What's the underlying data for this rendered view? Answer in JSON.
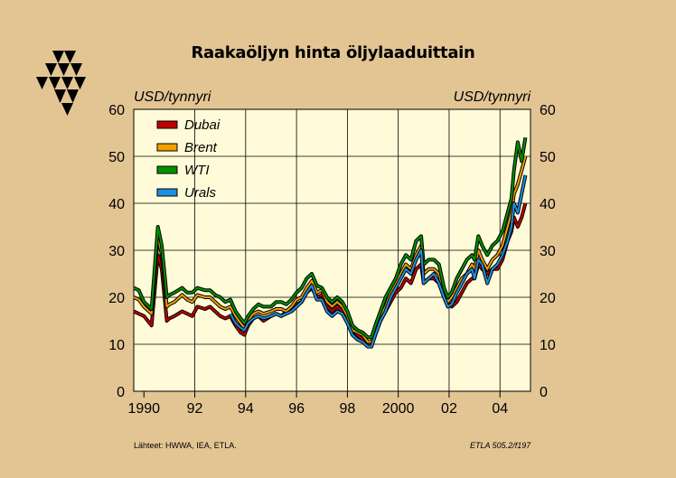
{
  "page": {
    "title": "Raakaöljyn hinta öljylaaduittain"
  },
  "footer": {
    "source": "Lähteet:   HWWA, IEA, ETLA.",
    "code": "ETLA 505.2/f197"
  },
  "chart_data": {
    "type": "line",
    "title": "Raakaöljyn hinta öljylaaduittain",
    "ylabel_left": "USD/tynnyri",
    "ylabel_right": "USD/tynnyri",
    "ylim": [
      0,
      60
    ],
    "yticks": [
      "0",
      "10",
      "20",
      "30",
      "40",
      "50",
      "60"
    ],
    "xlim": [
      1989.6,
      2005.2
    ],
    "xticks": [
      {
        "value": 1990,
        "label": "1990"
      },
      {
        "value": 1992,
        "label": "92"
      },
      {
        "value": 1994,
        "label": "94"
      },
      {
        "value": 1996,
        "label": "96"
      },
      {
        "value": 1998,
        "label": "98"
      },
      {
        "value": 2000,
        "label": "2000"
      },
      {
        "value": 2002,
        "label": "02"
      },
      {
        "value": 2004,
        "label": "04"
      }
    ],
    "grid": true,
    "legend": "top-left",
    "series": [
      {
        "name": "Dubai",
        "color": "#c00000",
        "x": [
          1989.6,
          1989.8,
          1990.0,
          1990.3,
          1990.55,
          1990.7,
          1990.9,
          1991.0,
          1991.2,
          1991.5,
          1991.7,
          1991.9,
          1992.1,
          1992.4,
          1992.6,
          1992.8,
          1993.0,
          1993.2,
          1993.4,
          1993.6,
          1993.8,
          1993.95,
          1994.1,
          1994.3,
          1994.5,
          1994.7,
          1995.0,
          1995.2,
          1995.4,
          1995.6,
          1995.8,
          1996.0,
          1996.2,
          1996.4,
          1996.6,
          1996.8,
          1997.0,
          1997.2,
          1997.4,
          1997.6,
          1997.8,
          1998.0,
          1998.2,
          1998.4,
          1998.6,
          1998.8,
          1998.95,
          1999.1,
          1999.3,
          1999.5,
          1999.7,
          1999.9,
          2000.1,
          2000.3,
          2000.5,
          2000.7,
          2000.9,
          2001.0,
          2001.2,
          2001.4,
          2001.6,
          2001.8,
          2001.95,
          2002.1,
          2002.3,
          2002.5,
          2002.7,
          2002.9,
          2003.0,
          2003.15,
          2003.3,
          2003.5,
          2003.7,
          2003.9,
          2004.1,
          2004.3,
          2004.45,
          2004.55,
          2004.7,
          2004.85,
          2005.0
        ],
        "y": [
          17,
          16.5,
          16,
          14,
          29,
          26,
          15,
          15.5,
          16,
          17,
          16.5,
          16,
          18,
          17.5,
          18,
          17,
          16,
          15.5,
          16,
          14,
          12.5,
          12,
          14,
          15.5,
          16,
          15,
          16,
          16.5,
          16,
          17,
          18,
          18.5,
          19,
          21,
          22,
          20,
          20.5,
          18,
          17,
          18,
          17,
          15,
          13,
          12,
          11,
          10,
          10,
          12,
          15,
          17,
          19,
          21,
          22,
          24,
          23,
          26,
          27,
          23,
          24,
          24,
          23,
          20,
          19,
          18,
          19,
          21,
          23,
          24,
          24,
          27,
          26,
          25,
          26,
          26,
          28,
          32,
          34,
          37,
          35,
          37,
          40
        ]
      },
      {
        "name": "Brent",
        "color": "#f0a000",
        "x": [
          1989.6,
          1989.8,
          1990.0,
          1990.3,
          1990.55,
          1990.7,
          1990.9,
          1991.0,
          1991.2,
          1991.5,
          1991.7,
          1991.9,
          1992.1,
          1992.4,
          1992.6,
          1992.8,
          1993.0,
          1993.2,
          1993.4,
          1993.6,
          1993.8,
          1993.95,
          1994.1,
          1994.3,
          1994.5,
          1994.7,
          1995.0,
          1995.2,
          1995.4,
          1995.6,
          1995.8,
          1996.0,
          1996.2,
          1996.4,
          1996.6,
          1996.8,
          1997.0,
          1997.2,
          1997.4,
          1997.6,
          1997.8,
          1998.0,
          1998.2,
          1998.4,
          1998.6,
          1998.8,
          1998.95,
          1999.1,
          1999.3,
          1999.5,
          1999.7,
          1999.9,
          2000.1,
          2000.3,
          2000.5,
          2000.7,
          2000.9,
          2001.0,
          2001.2,
          2001.4,
          2001.6,
          2001.8,
          2001.95,
          2002.1,
          2002.3,
          2002.5,
          2002.7,
          2002.9,
          2003.0,
          2003.15,
          2003.3,
          2003.5,
          2003.7,
          2003.9,
          2004.1,
          2004.3,
          2004.45,
          2004.55,
          2004.7,
          2004.85,
          2005.0
        ],
        "y": [
          20,
          19.5,
          18,
          16.5,
          33,
          29,
          18,
          18.5,
          19,
          20.5,
          19.5,
          19,
          20.5,
          20,
          20,
          19,
          18,
          17.5,
          18,
          16,
          14.5,
          13.5,
          15,
          16.5,
          17,
          16.5,
          17,
          17.5,
          17.5,
          17,
          18,
          19.5,
          20,
          22,
          23.5,
          21,
          21.5,
          19,
          18,
          19,
          18,
          16,
          13,
          12.5,
          12,
          10.5,
          10.5,
          13,
          16,
          18,
          21,
          23,
          25,
          27,
          26,
          29,
          31,
          25,
          26,
          26,
          25,
          21,
          19,
          20,
          22,
          24,
          25,
          27,
          26,
          30,
          28,
          26,
          28,
          29,
          31,
          35,
          38,
          42,
          44,
          47,
          50
        ]
      },
      {
        "name": "WTI",
        "color": "#009000",
        "x": [
          1989.6,
          1989.8,
          1990.0,
          1990.3,
          1990.55,
          1990.7,
          1990.9,
          1991.0,
          1991.2,
          1991.5,
          1991.7,
          1991.9,
          1992.1,
          1992.4,
          1992.6,
          1992.8,
          1993.0,
          1993.2,
          1993.4,
          1993.6,
          1993.8,
          1993.95,
          1994.1,
          1994.3,
          1994.5,
          1994.7,
          1995.0,
          1995.2,
          1995.4,
          1995.6,
          1995.8,
          1996.0,
          1996.2,
          1996.4,
          1996.6,
          1996.8,
          1997.0,
          1997.2,
          1997.4,
          1997.6,
          1997.8,
          1998.0,
          1998.2,
          1998.4,
          1998.6,
          1998.8,
          1998.95,
          1999.1,
          1999.3,
          1999.5,
          1999.7,
          1999.9,
          2000.1,
          2000.3,
          2000.5,
          2000.7,
          2000.9,
          2001.0,
          2001.2,
          2001.4,
          2001.6,
          2001.8,
          2001.95,
          2002.1,
          2002.3,
          2002.5,
          2002.7,
          2002.9,
          2003.0,
          2003.15,
          2003.3,
          2003.5,
          2003.7,
          2003.9,
          2004.1,
          2004.3,
          2004.45,
          2004.55,
          2004.7,
          2004.85,
          2005.0
        ],
        "y": [
          22,
          21.5,
          19,
          17.5,
          35,
          31,
          20,
          20.5,
          21,
          22,
          21,
          21,
          22,
          21.5,
          21.5,
          20.5,
          20,
          19,
          19.5,
          17,
          15.5,
          14.5,
          16,
          17.5,
          18.5,
          18,
          18,
          19,
          19,
          18.5,
          19.5,
          21,
          22,
          24,
          25,
          22.5,
          22,
          20,
          19,
          20,
          19,
          17,
          14,
          13,
          12.5,
          11.5,
          11.5,
          14,
          17,
          20,
          22,
          24,
          27,
          29,
          28,
          32,
          33,
          27,
          28,
          28,
          27,
          22,
          20,
          21,
          24,
          26,
          28,
          29,
          28,
          33,
          31,
          29,
          31,
          32,
          34,
          38,
          41,
          47,
          53,
          49,
          54
        ]
      },
      {
        "name": "Urals",
        "color": "#1e8fe0",
        "x": [
          1993.4,
          1993.6,
          1993.8,
          1993.95,
          1994.1,
          1994.3,
          1994.5,
          1994.7,
          1995.0,
          1995.2,
          1995.4,
          1995.6,
          1995.8,
          1996.0,
          1996.2,
          1996.4,
          1996.6,
          1996.8,
          1997.0,
          1997.2,
          1997.4,
          1997.6,
          1997.8,
          1998.0,
          1998.2,
          1998.4,
          1998.6,
          1998.8,
          1998.95,
          1999.1,
          1999.3,
          1999.5,
          1999.7,
          1999.9,
          2000.1,
          2000.3,
          2000.5,
          2000.7,
          2000.9,
          2001.0,
          2001.2,
          2001.4,
          2001.6,
          2001.8,
          2001.95,
          2002.1,
          2002.3,
          2002.5,
          2002.7,
          2002.9,
          2003.0,
          2003.15,
          2003.3,
          2003.5,
          2003.7,
          2003.9,
          2004.1,
          2004.3,
          2004.45,
          2004.55,
          2004.7,
          2004.85,
          2005.0
        ],
        "y": [
          16.5,
          14.5,
          13.5,
          13,
          14.5,
          15.5,
          16,
          15.5,
          16,
          16.5,
          16,
          16.5,
          17,
          18,
          19,
          21,
          22.5,
          19.5,
          19.5,
          17,
          16,
          17,
          16.5,
          14.5,
          12,
          11,
          10.5,
          9.5,
          9.5,
          12,
          15,
          17,
          20,
          22,
          24,
          26,
          25,
          28,
          30,
          23,
          24,
          25,
          23,
          20,
          18,
          18.5,
          21,
          23,
          25,
          26,
          24,
          28,
          27,
          23,
          26,
          27,
          29,
          32,
          35,
          40,
          38,
          42,
          46
        ]
      }
    ]
  }
}
